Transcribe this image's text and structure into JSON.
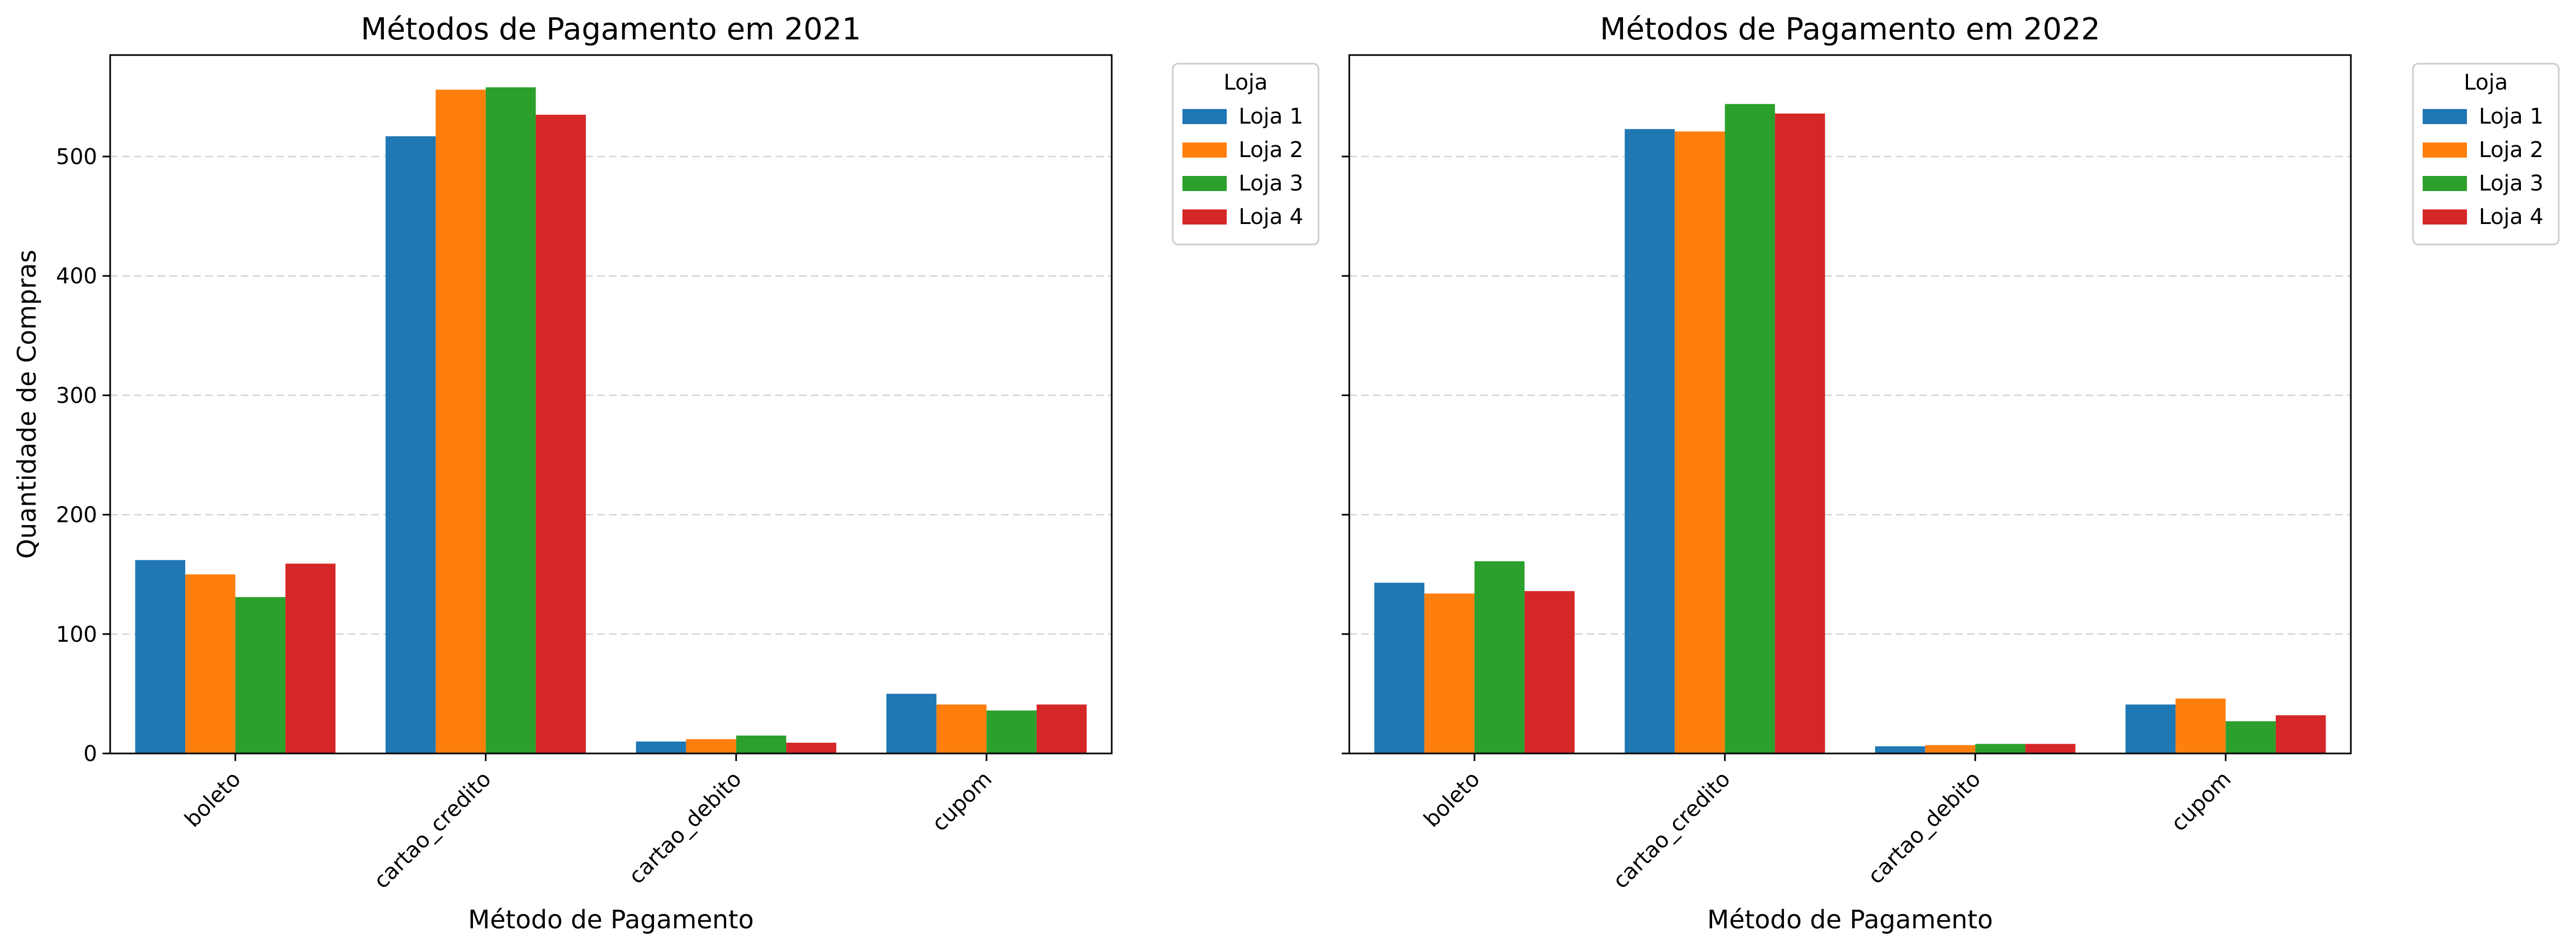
{
  "colors": {
    "loja_1": "#1f77b4",
    "loja_2": "#ff7f0e",
    "loja_3": "#2ca02c",
    "loja_4": "#d62728"
  },
  "chart_data": [
    {
      "type": "bar",
      "title": "Métodos de Pagamento em 2021",
      "xlabel": "Método de Pagamento",
      "ylabel": "Quantidade de Compras",
      "categories": [
        "boleto",
        "cartao_credito",
        "cartao_debito",
        "cupom"
      ],
      "ylim": [
        0,
        585
      ],
      "yticks": [
        0,
        100,
        200,
        300,
        400,
        500
      ],
      "grid": "y dashed",
      "legend": {
        "title": "Loja",
        "placement": "outside-right-top"
      },
      "series": [
        {
          "name": "Loja 1",
          "values": [
            162,
            517,
            10,
            50
          ]
        },
        {
          "name": "Loja 2",
          "values": [
            150,
            556,
            12,
            41
          ]
        },
        {
          "name": "Loja 3",
          "values": [
            131,
            558,
            15,
            36
          ]
        },
        {
          "name": "Loja 4",
          "values": [
            159,
            535,
            9,
            41
          ]
        }
      ]
    },
    {
      "type": "bar",
      "title": "Métodos de Pagamento em 2022",
      "xlabel": "Método de Pagamento",
      "ylabel": "",
      "categories": [
        "boleto",
        "cartao_credito",
        "cartao_debito",
        "cupom"
      ],
      "ylim": [
        0,
        585
      ],
      "yticks": [
        0,
        100,
        200,
        300,
        400,
        500
      ],
      "grid": "y dashed",
      "legend": {
        "title": "Loja",
        "placement": "outside-right-top"
      },
      "series": [
        {
          "name": "Loja 1",
          "values": [
            143,
            523,
            6,
            41
          ]
        },
        {
          "name": "Loja 2",
          "values": [
            134,
            521,
            7,
            46
          ]
        },
        {
          "name": "Loja 3",
          "values": [
            161,
            544,
            8,
            27
          ]
        },
        {
          "name": "Loja 4",
          "values": [
            136,
            536,
            8,
            32
          ]
        }
      ]
    }
  ]
}
